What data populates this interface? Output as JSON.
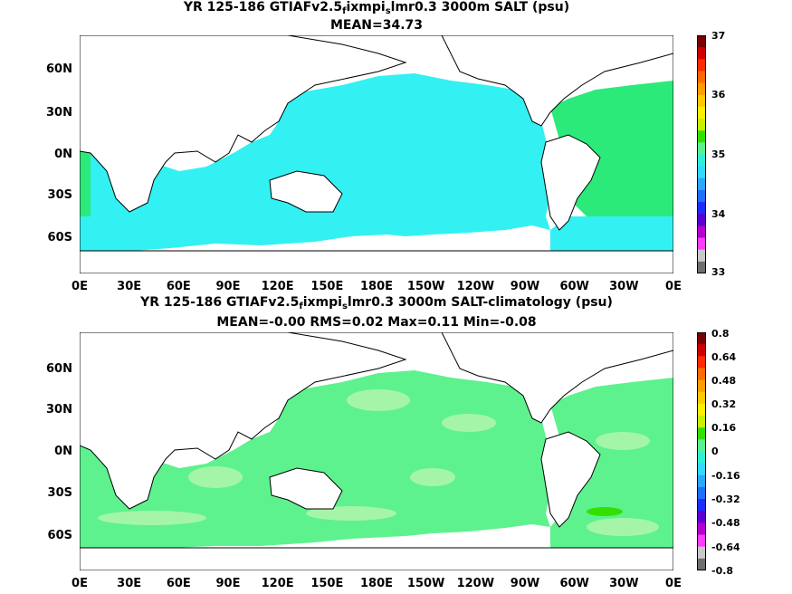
{
  "panel1": {
    "title_a": "YR 125-186 GTIAFv2.5",
    "title_sub1": "f",
    "title_b": "ixmpi",
    "title_sub2": "s",
    "title_c": "lmr0.3 3000m SALT (psu)",
    "subtitle": "MEAN=34.73",
    "colorbar_labels": [
      "37",
      "36",
      "35",
      "34",
      "33"
    ],
    "colors": {
      "ocean": "#33f0f2",
      "high": "#2cea7a"
    }
  },
  "panel2": {
    "title_a": "YR 125-186 GTIAFv2.5",
    "title_sub1": "f",
    "title_b": "ixmpi",
    "title_sub2": "s",
    "title_c": "lmr0.3 3000m SALT-climatology (psu)",
    "subtitle": "MEAN=-0.00   RMS=0.02   Max=0.11   Min=-0.08",
    "colorbar_labels": [
      "0.8",
      "0.64",
      "0.48",
      "0.32",
      "0.16",
      "0",
      "-0.16",
      "-0.32",
      "-0.48",
      "-0.64",
      "-0.8"
    ],
    "colors": {
      "ocean": "#5df28e",
      "patch": "#a4f5a8",
      "cyan": "#33f0f2"
    }
  },
  "axes": {
    "lat_labels": [
      "60N",
      "30N",
      "0N",
      "30S",
      "60S"
    ],
    "lon_labels": [
      "0E",
      "30E",
      "60E",
      "90E",
      "120E",
      "150E",
      "180E",
      "150W",
      "120W",
      "90W",
      "60W",
      "30W",
      "0E"
    ]
  },
  "colorbar_colors": [
    "#7a0000",
    "#cc0000",
    "#ff2a00",
    "#ff6a00",
    "#ff9c00",
    "#ffc800",
    "#ffee00",
    "#c8f000",
    "#32e000",
    "#5af28e",
    "#2ef0d8",
    "#33d8ff",
    "#2aa8ff",
    "#1e70ff",
    "#1e2cff",
    "#5a00d0",
    "#b400d0",
    "#ff3cff",
    "#c8c8c8",
    "#6e6e6e"
  ]
}
